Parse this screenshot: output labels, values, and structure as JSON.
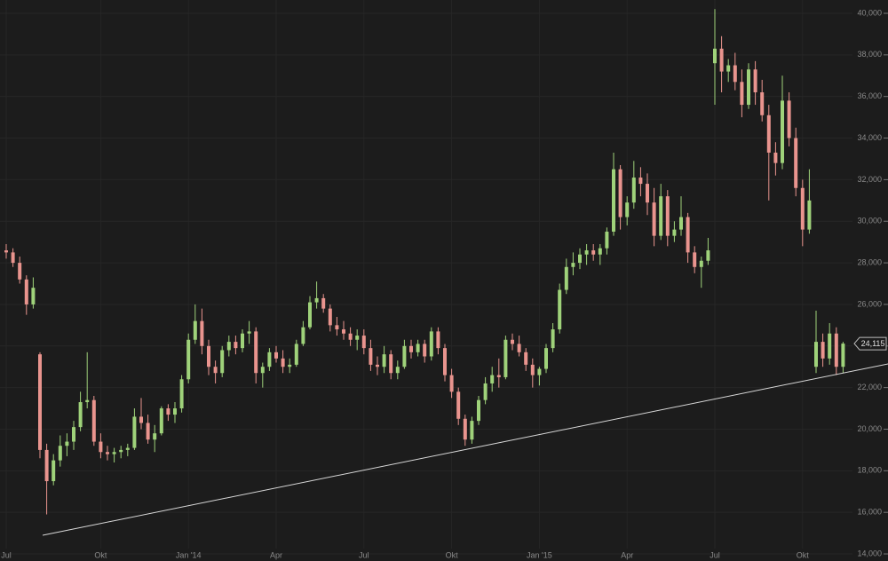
{
  "chart_data": {
    "type": "candlestick",
    "categories": [
      "Jul",
      null,
      null,
      null,
      null,
      null,
      null,
      null,
      null,
      null,
      null,
      null,
      null,
      null,
      "Okt",
      null,
      null,
      null,
      null,
      null,
      null,
      null,
      null,
      null,
      null,
      null,
      null,
      "Jan '14",
      null,
      null,
      null,
      null,
      null,
      null,
      null,
      null,
      null,
      null,
      null,
      null,
      "Apr",
      null,
      null,
      null,
      null,
      null,
      null,
      null,
      null,
      null,
      null,
      null,
      null,
      "Jul",
      null,
      null,
      null,
      null,
      null,
      null,
      null,
      null,
      null,
      null,
      null,
      null,
      "Okt",
      null,
      null,
      null,
      null,
      null,
      null,
      null,
      null,
      null,
      null,
      null,
      null,
      "Jan '15",
      null,
      null,
      null,
      null,
      null,
      null,
      null,
      null,
      null,
      null,
      null,
      null,
      "Apr",
      null,
      null,
      null,
      null,
      null,
      null,
      null,
      null,
      null,
      null,
      null,
      null,
      "Jul",
      null,
      null,
      null,
      null,
      null,
      null,
      null,
      null,
      null,
      null,
      null,
      null,
      "Okt",
      null,
      null,
      null,
      null,
      null,
      null
    ],
    "open": [
      28600,
      28500,
      28000,
      27200,
      26000,
      23600,
      19000,
      17500,
      18500,
      19200,
      19400,
      20100,
      21300,
      21400,
      19400,
      18900,
      18800,
      18900,
      19000,
      19100,
      20600,
      20300,
      19500,
      19800,
      21000,
      20700,
      21000,
      22400,
      24300,
      25200,
      24000,
      23000,
      22700,
      23800,
      24200,
      23900,
      24600,
      24700,
      22700,
      23000,
      23700,
      23400,
      23000,
      23100,
      24100,
      24900,
      26100,
      26300,
      25800,
      25000,
      24800,
      24600,
      24300,
      24500,
      23900,
      23100,
      23000,
      23600,
      22700,
      23000,
      24000,
      23700,
      24100,
      23500,
      24700,
      23900,
      22600,
      21800,
      20500,
      19500,
      20400,
      21400,
      22200,
      22600,
      22500,
      24300,
      24100,
      23700,
      23100,
      22600,
      22900,
      23900,
      24800,
      26700,
      27800,
      28000,
      28400,
      28600,
      28400,
      28700,
      29500,
      32500,
      30200,
      30900,
      32100,
      31800,
      30900,
      29300,
      31200,
      29300,
      29600,
      30200,
      28500,
      27800,
      28100,
      37600,
      38300,
      37200,
      37500,
      36700,
      35600,
      37300,
      36200,
      35100,
      33300,
      32800,
      35800,
      34000,
      31600,
      29600,
      23000,
      24200,
      23400,
      24600,
      23000
    ],
    "high": [
      28900,
      28700,
      28300,
      27400,
      27300,
      23700,
      19300,
      18800,
      19700,
      19800,
      20400,
      21800,
      23700,
      21600,
      19800,
      19200,
      19100,
      19200,
      19300,
      21000,
      21500,
      20700,
      20200,
      21100,
      21200,
      21300,
      22600,
      24600,
      26000,
      25800,
      24300,
      23300,
      24000,
      24500,
      24500,
      24800,
      25200,
      24900,
      23200,
      23900,
      24000,
      23800,
      23400,
      24300,
      25200,
      26400,
      27100,
      26500,
      26000,
      25400,
      25200,
      24900,
      24800,
      24800,
      24300,
      23500,
      24000,
      23800,
      23300,
      24300,
      24300,
      24300,
      24300,
      24900,
      24900,
      24100,
      22900,
      22000,
      20700,
      20600,
      21600,
      22500,
      23000,
      23400,
      24500,
      24600,
      24500,
      23900,
      23400,
      23000,
      24100,
      25100,
      27000,
      28200,
      28500,
      28700,
      28900,
      28900,
      28900,
      29700,
      33300,
      32700,
      31200,
      32900,
      32600,
      32300,
      31600,
      31800,
      31500,
      30000,
      31200,
      30400,
      28800,
      28300,
      29200,
      40200,
      38900,
      37800,
      38100,
      37300,
      37600,
      37700,
      36800,
      35600,
      33800,
      37000,
      36200,
      34500,
      32000,
      32500,
      25700,
      24600,
      25100,
      24900,
      24200
    ],
    "low": [
      28200,
      27800,
      27000,
      25500,
      25800,
      18600,
      15900,
      17300,
      18200,
      18700,
      19000,
      19900,
      21000,
      19200,
      18600,
      18500,
      18400,
      18600,
      18700,
      19000,
      20000,
      19300,
      18900,
      19700,
      20400,
      20300,
      20800,
      22200,
      24100,
      23600,
      22600,
      22200,
      22500,
      23500,
      23600,
      23700,
      24100,
      22200,
      22000,
      22800,
      23200,
      22700,
      22700,
      23000,
      24000,
      24800,
      25800,
      25600,
      24700,
      24500,
      24300,
      24000,
      23800,
      23600,
      22800,
      22600,
      22700,
      22400,
      22400,
      22900,
      23400,
      23500,
      23200,
      23300,
      23600,
      22300,
      21500,
      20200,
      19200,
      19300,
      20200,
      21200,
      21800,
      22000,
      22400,
      23800,
      23500,
      22800,
      22000,
      22100,
      22700,
      23700,
      24600,
      26500,
      27400,
      27700,
      27900,
      28100,
      27900,
      28400,
      29300,
      29600,
      29800,
      30600,
      31200,
      30300,
      28800,
      29100,
      28800,
      29000,
      29300,
      28000,
      27500,
      26800,
      27900,
      35600,
      36200,
      36700,
      36300,
      35000,
      35400,
      35600,
      34800,
      31000,
      32200,
      32500,
      33600,
      31200,
      28800,
      29400,
      22700,
      23000,
      23100,
      22600,
      22700
    ],
    "close": [
      28500,
      28000,
      27200,
      26000,
      26800,
      19000,
      17500,
      18500,
      19200,
      19400,
      20100,
      21300,
      21400,
      19400,
      18900,
      18800,
      18900,
      19000,
      19100,
      20600,
      20300,
      19500,
      19800,
      21000,
      20700,
      21000,
      22400,
      24300,
      25200,
      24000,
      23000,
      22700,
      23800,
      24200,
      23900,
      24600,
      24700,
      22700,
      23000,
      23700,
      23400,
      23000,
      23100,
      24100,
      24900,
      26100,
      26300,
      25800,
      25000,
      24800,
      24600,
      24300,
      24500,
      23900,
      23100,
      23000,
      23600,
      22700,
      23000,
      24000,
      23700,
      24100,
      23500,
      24700,
      23900,
      22600,
      21800,
      20500,
      19500,
      20400,
      21400,
      22200,
      22600,
      22500,
      24300,
      24100,
      23700,
      23100,
      22600,
      22900,
      23900,
      24800,
      26700,
      27800,
      28000,
      28400,
      28600,
      28400,
      28700,
      29500,
      32500,
      30200,
      30900,
      32100,
      31800,
      30900,
      29300,
      31200,
      29300,
      29600,
      30200,
      28500,
      27800,
      28100,
      28600,
      38300,
      37200,
      37500,
      36700,
      35600,
      37300,
      36200,
      35100,
      33300,
      32800,
      35800,
      34000,
      31600,
      29600,
      31000,
      24200,
      23400,
      24600,
      23000,
      24115
    ],
    "up_color": "#9fd27a",
    "down_color": "#e9948e",
    "ylim": [
      13660,
      40640
    ],
    "yticks": [
      {
        "value": 14000,
        "label": "14,000"
      },
      {
        "value": 16000,
        "label": "16,000"
      },
      {
        "value": 18000,
        "label": "18,000"
      },
      {
        "value": 20000,
        "label": "20,000"
      },
      {
        "value": 22000,
        "label": "22,000"
      },
      {
        "value": 24000,
        "label": "24,000"
      },
      {
        "value": 26000,
        "label": "26,000"
      },
      {
        "value": 28000,
        "label": "28,000"
      },
      {
        "value": 30000,
        "label": "30,000"
      },
      {
        "value": 32000,
        "label": "32,000"
      },
      {
        "value": 34000,
        "label": "34,000"
      },
      {
        "value": 36000,
        "label": "36,000"
      },
      {
        "value": 38000,
        "label": "38,000"
      },
      {
        "value": 40000,
        "label": "40,000"
      }
    ],
    "grid": true,
    "trendline": {
      "x": [
        5.4,
        130.7
      ],
      "values": [
        14900,
        23140
      ],
      "color": "#d8d8d8"
    },
    "last_price": {
      "value": 24115,
      "label": "24,115"
    }
  }
}
